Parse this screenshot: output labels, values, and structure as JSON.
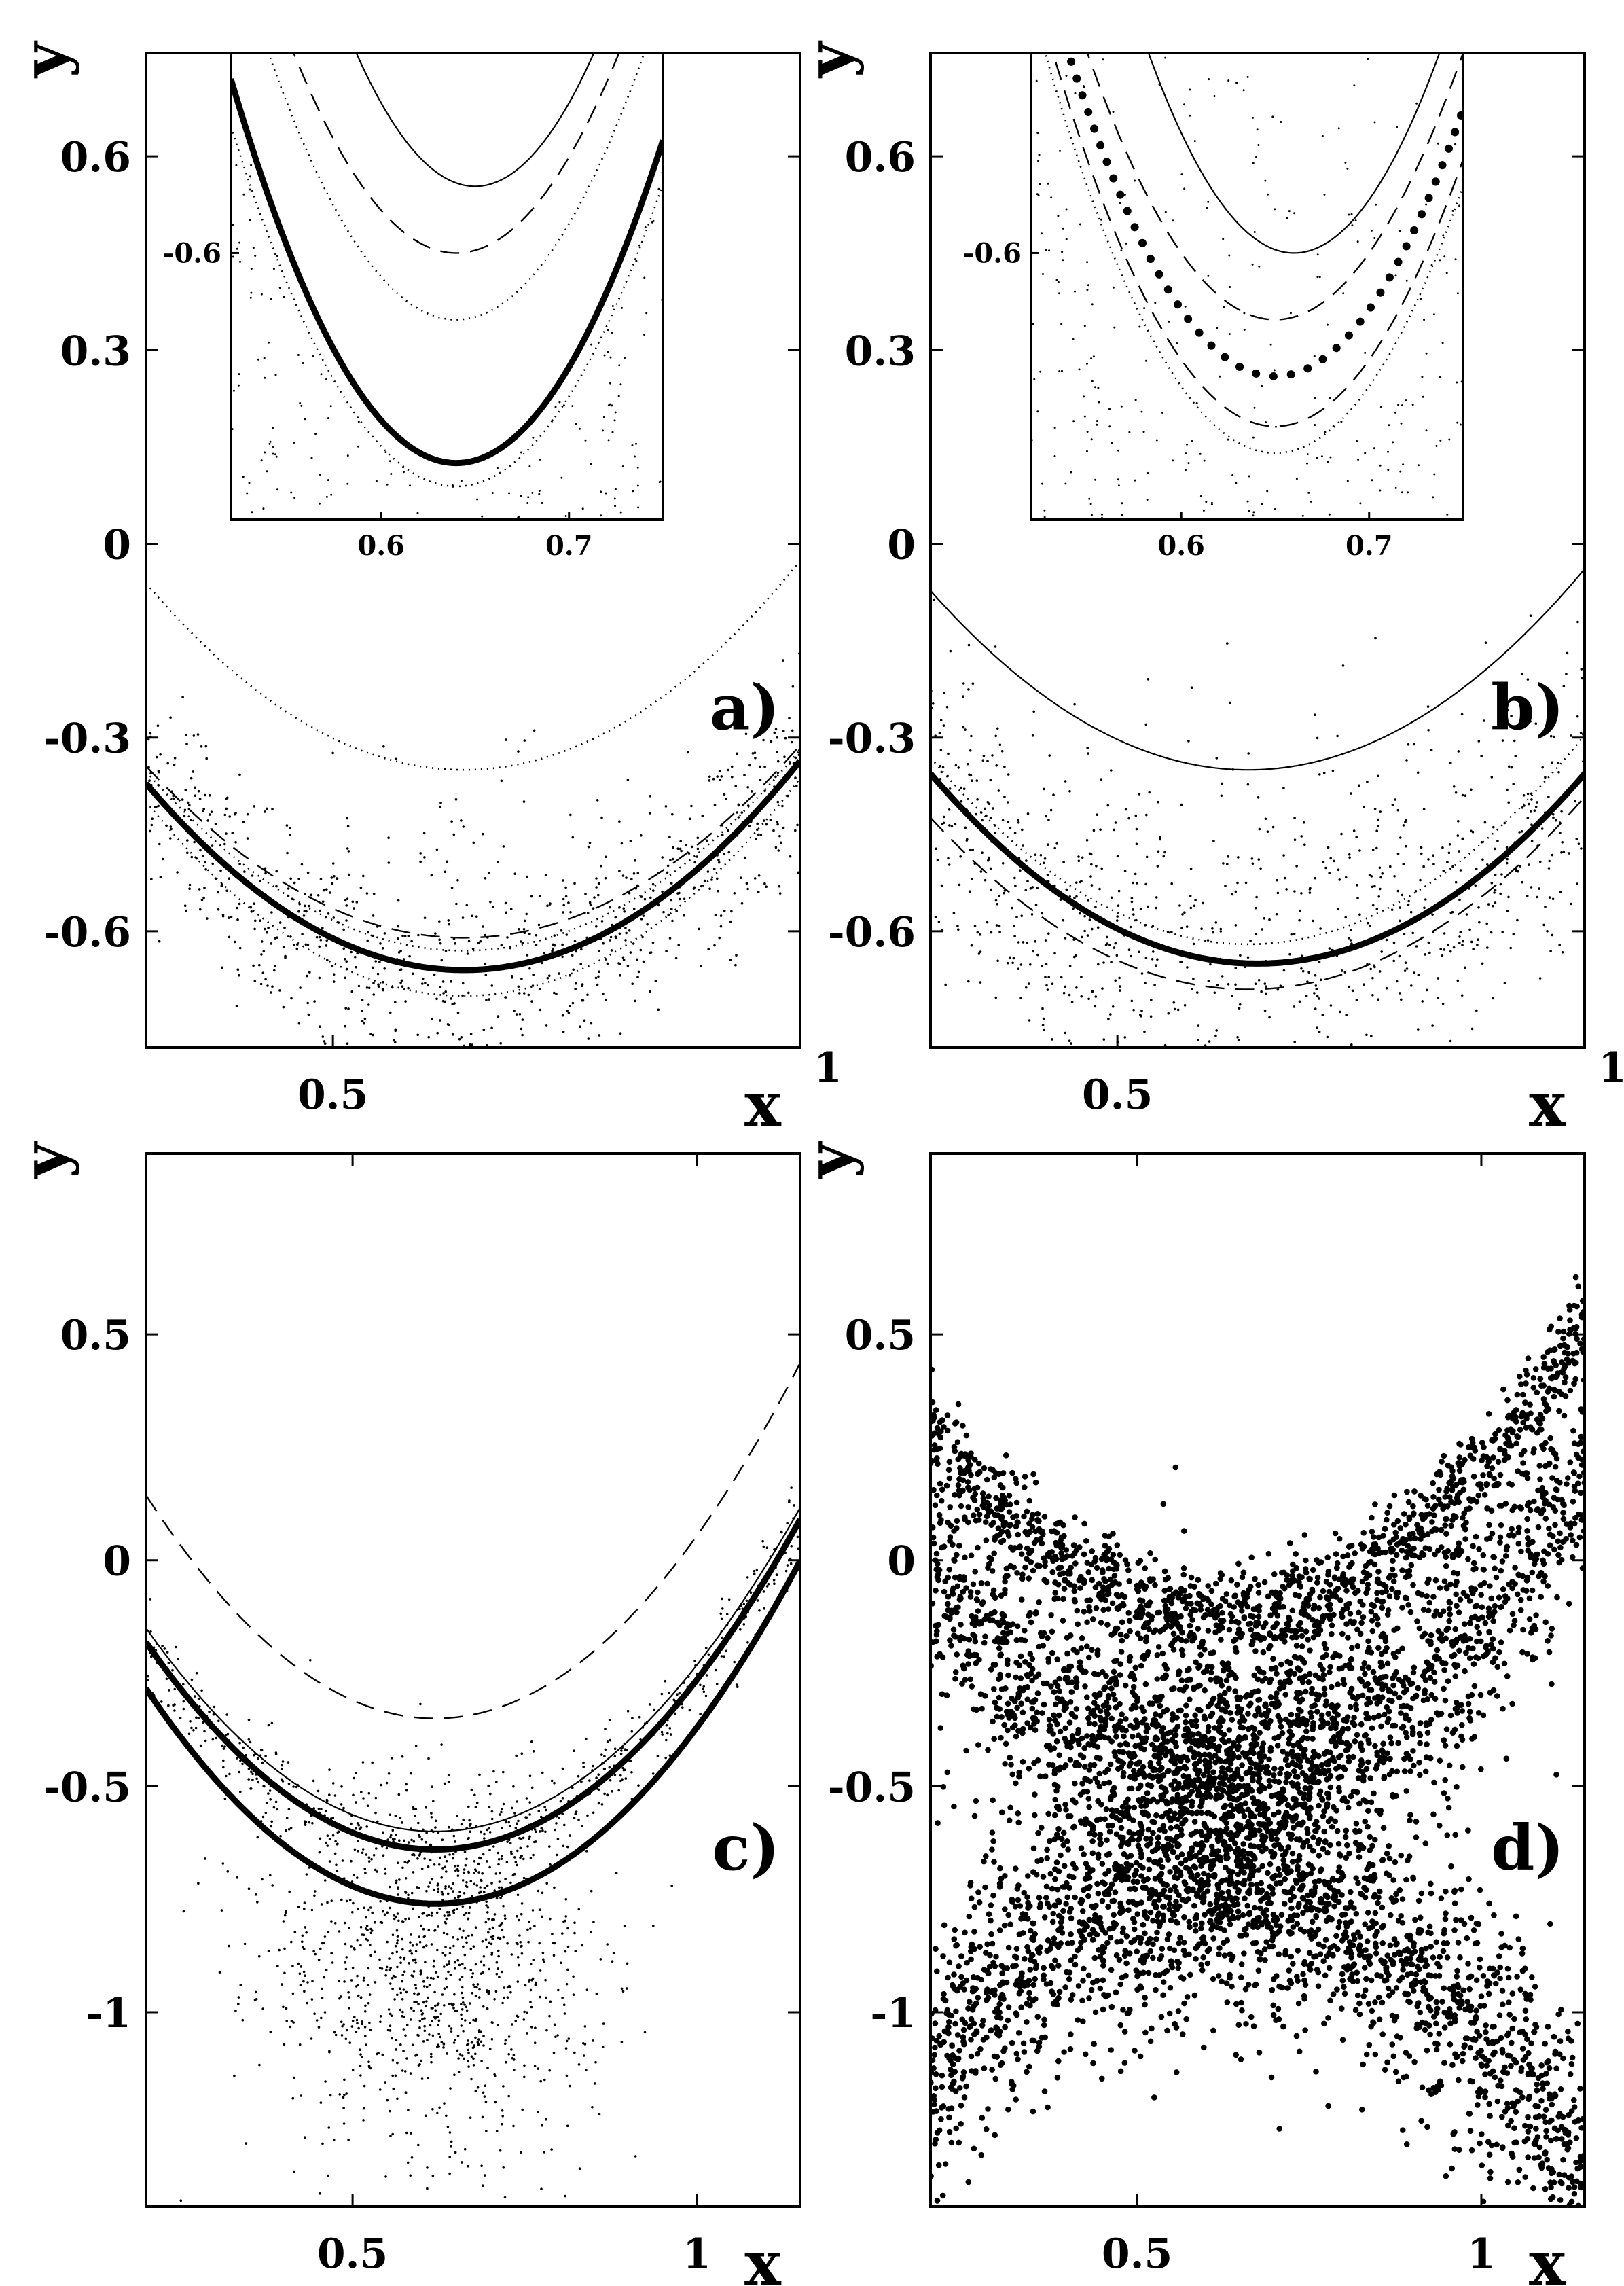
{
  "chart_data": [
    {
      "type": "scatter",
      "panel_label": "a)",
      "xlabel": "x",
      "ylabel": "y",
      "xlim": [
        0.3,
        1.0
      ],
      "ylim": [
        -0.78,
        0.76
      ],
      "xticks": [
        {
          "v": 0.5,
          "label": "0.5"
        },
        {
          "v": 1.0,
          "label": "1"
        }
      ],
      "yticks": [
        {
          "v": 0.6,
          "label": "0.6"
        },
        {
          "v": 0.3,
          "label": "0.3"
        },
        {
          "v": 0.0,
          "label": "0"
        },
        {
          "v": -0.3,
          "label": "-0.3"
        },
        {
          "v": -0.6,
          "label": "-0.6"
        }
      ],
      "curves": [
        {
          "style": "thick",
          "x0": 0.64,
          "a": 2.5,
          "c": -0.66
        },
        {
          "style": "dotted",
          "x0": 0.64,
          "a": 2.5,
          "c": -0.35
        },
        {
          "style": "dotted",
          "x0": 0.64,
          "a": 2.6,
          "c": -0.7
        },
        {
          "style": "dotted",
          "x0": 0.64,
          "a": 2.4,
          "c": -0.63
        },
        {
          "style": "dashed",
          "x0": 0.64,
          "a": 2.3,
          "c": -0.61
        }
      ],
      "scatter": {
        "x0": 0.64,
        "a": 2.5,
        "c": -0.66,
        "spread": 0.08,
        "n": 900
      },
      "inset": {
        "xlim": [
          0.52,
          0.75
        ],
        "ylim": [
          -0.68,
          -0.54
        ],
        "xticks": [
          {
            "v": 0.6,
            "label": "0.6"
          },
          {
            "v": 0.7,
            "label": "0.7"
          }
        ],
        "yticks": [
          {
            "v": -0.6,
            "label": "-0.6"
          }
        ],
        "curves": [
          {
            "style": "thick",
            "x0": 0.64,
            "a": 8.0,
            "c": -0.663
          },
          {
            "style": "dotted",
            "x0": 0.64,
            "a": 8.0,
            "c": -0.62
          },
          {
            "style": "dashed",
            "x0": 0.64,
            "a": 8.0,
            "c": -0.6
          },
          {
            "style": "solid",
            "x0": 0.65,
            "a": 10.0,
            "c": -0.58
          },
          {
            "style": "dotted",
            "x0": 0.64,
            "a": 7.5,
            "c": -0.67
          }
        ]
      }
    },
    {
      "type": "scatter",
      "panel_label": "b)",
      "xlabel": "x",
      "ylabel": "y",
      "xlim": [
        0.3,
        1.0
      ],
      "ylim": [
        -0.78,
        0.76
      ],
      "xticks": [
        {
          "v": 0.5,
          "label": "0.5"
        },
        {
          "v": 1.0,
          "label": "1"
        }
      ],
      "yticks": [
        {
          "v": 0.6,
          "label": "0.6"
        },
        {
          "v": 0.3,
          "label": "0.3"
        },
        {
          "v": 0.0,
          "label": "0"
        },
        {
          "v": -0.3,
          "label": "-0.3"
        },
        {
          "v": -0.6,
          "label": "-0.6"
        }
      ],
      "curves": [
        {
          "style": "thick",
          "x0": 0.65,
          "a": 2.4,
          "c": -0.65
        },
        {
          "style": "solid",
          "x0": 0.64,
          "a": 2.4,
          "c": -0.35
        },
        {
          "style": "dotted",
          "x0": 0.64,
          "a": 2.5,
          "c": -0.62
        },
        {
          "style": "dashed",
          "x0": 0.64,
          "a": 2.3,
          "c": -0.69
        }
      ],
      "scatter": {
        "x0": 0.64,
        "a": 2.4,
        "c": -0.66,
        "spread": 0.13,
        "n": 1000
      },
      "inset": {
        "xlim": [
          0.52,
          0.75
        ],
        "ylim": [
          -0.68,
          -0.54
        ],
        "xticks": [
          {
            "v": 0.6,
            "label": "0.6"
          },
          {
            "v": 0.7,
            "label": "0.7"
          }
        ],
        "yticks": [
          {
            "v": -0.6,
            "label": "-0.6"
          }
        ],
        "curves": [
          {
            "style": "bigdots",
            "x0": 0.65,
            "a": 8.0,
            "c": -0.637
          },
          {
            "style": "dashed",
            "x0": 0.65,
            "a": 8.0,
            "c": -0.652
          },
          {
            "style": "dotted",
            "x0": 0.65,
            "a": 8.0,
            "c": -0.66
          },
          {
            "style": "dashed",
            "x0": 0.65,
            "a": 8.0,
            "c": -0.62
          },
          {
            "style": "solid",
            "x0": 0.66,
            "a": 10.0,
            "c": -0.6
          }
        ]
      }
    },
    {
      "type": "scatter",
      "panel_label": "c)",
      "xlabel": "x",
      "ylabel": "y",
      "xlim": [
        0.2,
        1.15
      ],
      "ylim": [
        -1.43,
        0.9
      ],
      "xticks": [
        {
          "v": 0.5,
          "label": "0.5"
        },
        {
          "v": 1.0,
          "label": "1"
        }
      ],
      "yticks": [
        {
          "v": 0.5,
          "label": "0.5"
        },
        {
          "v": 0.0,
          "label": "0"
        },
        {
          "v": -0.5,
          "label": "-0.5"
        },
        {
          "v": -1.0,
          "label": "-1"
        }
      ],
      "curves": [
        {
          "style": "thick",
          "x0": 0.62,
          "a": 2.6,
          "c": -0.64
        },
        {
          "style": "thick",
          "x0": 0.62,
          "a": 2.7,
          "c": -0.76
        },
        {
          "style": "solid",
          "x0": 0.62,
          "a": 2.55,
          "c": -0.6
        },
        {
          "style": "dashed",
          "x0": 0.62,
          "a": 2.8,
          "c": -0.35
        }
      ],
      "scatter": {
        "x0": 0.62,
        "a": 2.6,
        "c": -0.64,
        "spread": 0.05,
        "n": 600
      },
      "scatter_center": {
        "x": 0.62,
        "y": -0.9,
        "sx": 0.12,
        "sy": 0.2,
        "n": 1100
      }
    },
    {
      "type": "scatter",
      "panel_label": "d)",
      "xlabel": "x",
      "ylabel": "y",
      "xlim": [
        0.2,
        1.15
      ],
      "ylim": [
        -1.43,
        0.9
      ],
      "xticks": [
        {
          "v": 0.5,
          "label": "0.5"
        },
        {
          "v": 1.0,
          "label": "1"
        }
      ],
      "yticks": [
        {
          "v": 0.5,
          "label": "0.5"
        },
        {
          "v": 0.0,
          "label": "0"
        },
        {
          "v": -0.5,
          "label": "-0.5"
        },
        {
          "v": -1.0,
          "label": "-1"
        }
      ],
      "cloud": {
        "center_x": 0.62,
        "center_y": -0.55,
        "n": 6000
      }
    }
  ]
}
